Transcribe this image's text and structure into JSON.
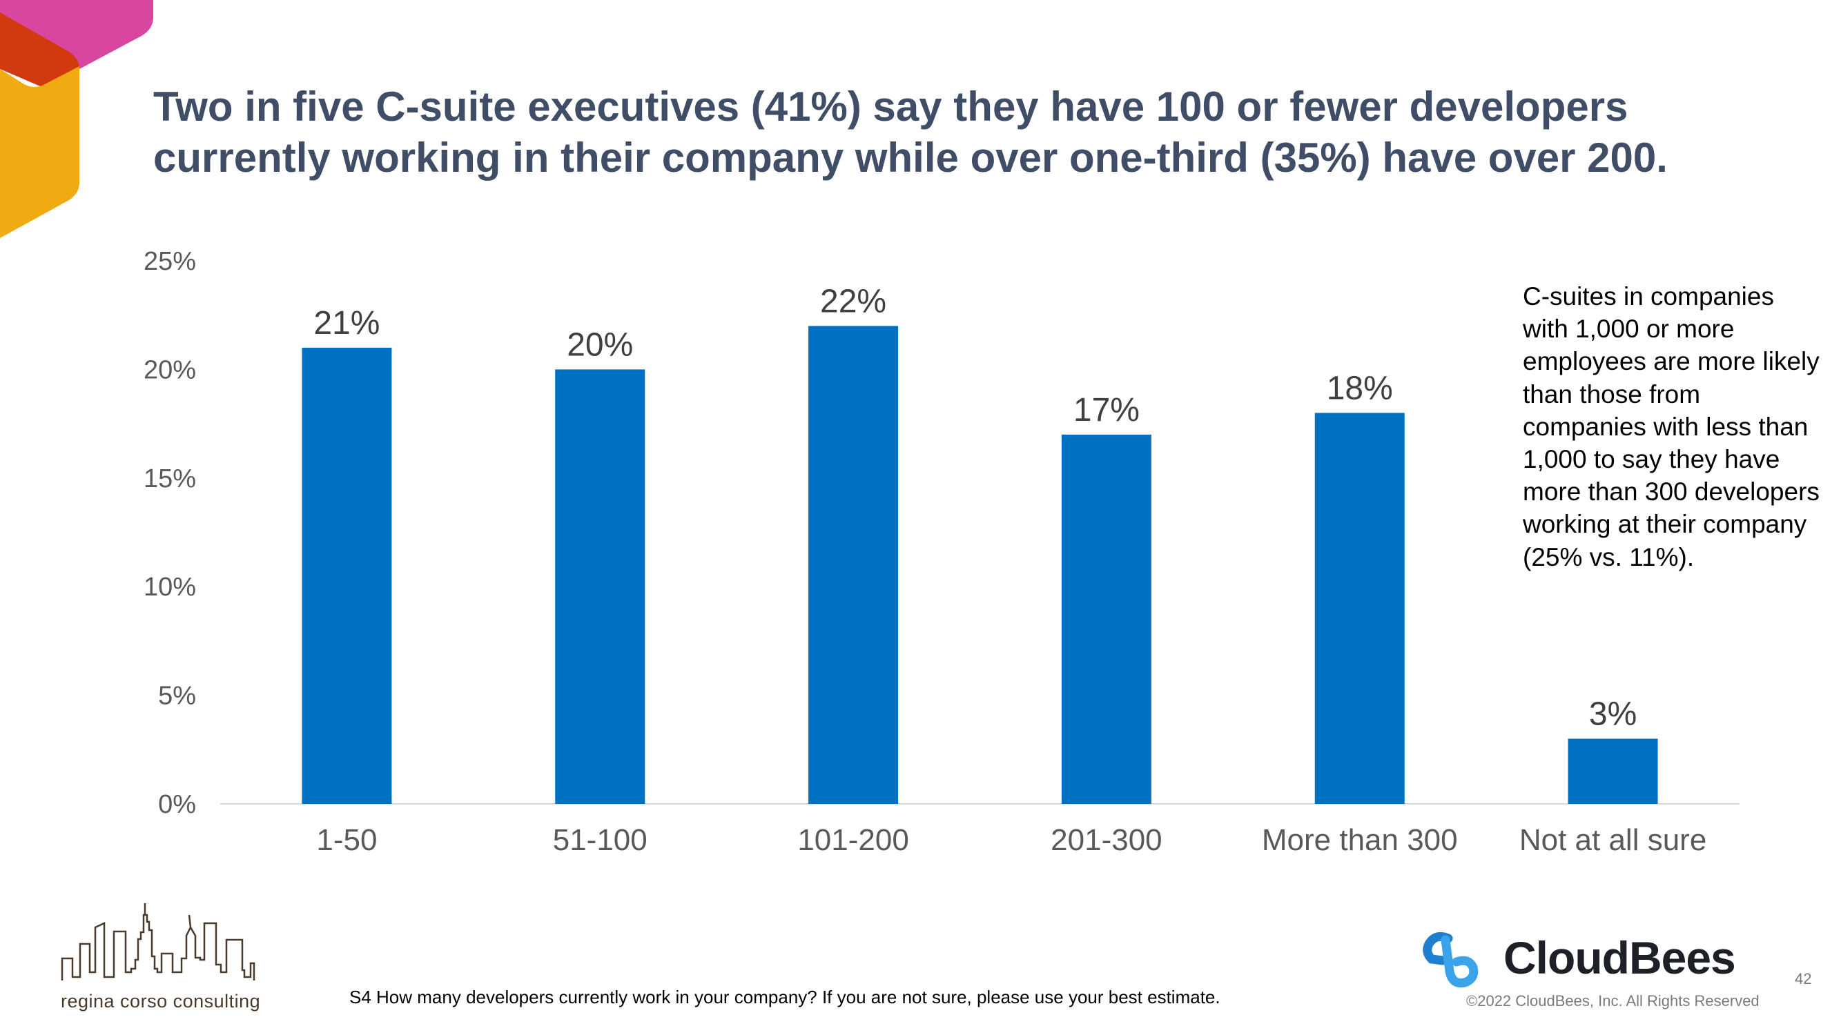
{
  "title": "Two in five C-suite executives (41%) say they have 100 or fewer developers currently working in their company while over one-third (35%) have over 200.",
  "note": "C-suites in companies with 1,000 or more employees are more likely than those from companies with less than 1,000 to say they have more than 300 developers working at their company (25% vs. 11%).",
  "footnote": "S4 How many developers currently work in your company? If you are not sure, please use your best estimate.",
  "footer": {
    "brand_logo": "CloudBees",
    "copyright": "©2022 CloudBees, Inc. All Rights Reserved",
    "page_number": "42",
    "partner_logo": "regina corso consulting"
  },
  "colors": {
    "bar": "#0070C0",
    "title": "#3f4d66",
    "logo_pink": "#d946a0",
    "logo_red": "#d13a0f",
    "logo_yellow": "#f0aa12",
    "cloudbees_blue": "#1a8ad8"
  },
  "chart_data": {
    "type": "bar",
    "categories": [
      "1-50",
      "51-100",
      "101-200",
      "201-300",
      "More than 300",
      "Not at all sure"
    ],
    "values": [
      21,
      20,
      22,
      17,
      18,
      3
    ],
    "data_labels": [
      "21%",
      "20%",
      "22%",
      "17%",
      "18%",
      "3%"
    ],
    "ylim": [
      0,
      25
    ],
    "yticks": [
      "0%",
      "5%",
      "10%",
      "15%",
      "20%",
      "25%"
    ],
    "grid": false,
    "xlabel": "",
    "ylabel": ""
  }
}
